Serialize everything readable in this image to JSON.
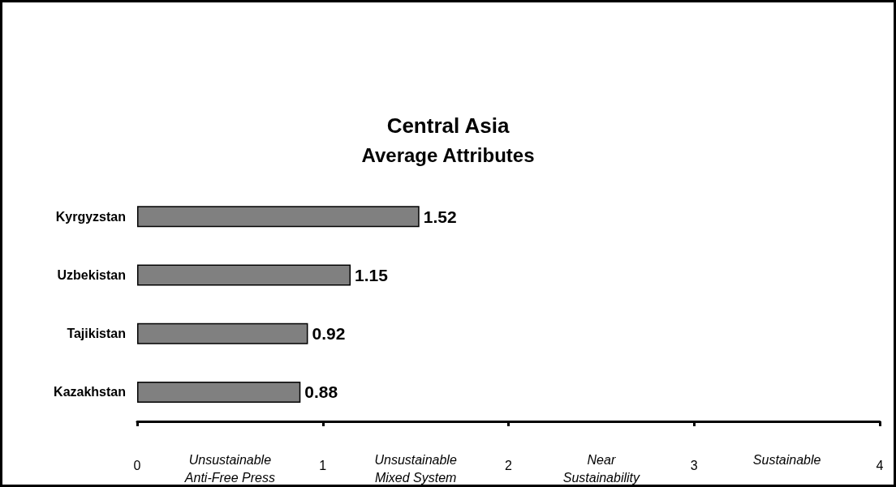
{
  "chart_data": {
    "type": "bar",
    "orientation": "horizontal",
    "title": "Central Asia",
    "subtitle": "Average Attributes",
    "categories": [
      "Kyrgyzstan",
      "Uzbekistan",
      "Tajikistan",
      "Kazakhstan"
    ],
    "values": [
      1.52,
      1.15,
      0.92,
      0.88
    ],
    "color": "#808080",
    "data_labels": true,
    "xlim": [
      0,
      4
    ],
    "xticks": [
      0,
      1,
      2,
      3,
      4
    ],
    "grid": false,
    "annotations": [
      "Unsustainable\nAnti-Free Press",
      "Unsustainable\nMixed System",
      "Near\nSustainability",
      "Sustainable"
    ]
  }
}
